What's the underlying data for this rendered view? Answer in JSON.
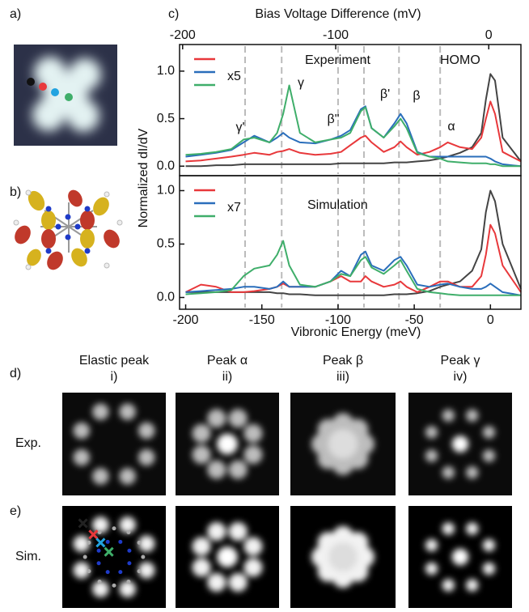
{
  "panel_labels": [
    "a)",
    "b)",
    "c)",
    "d)",
    "e)"
  ],
  "ylabel": "Normalized dI/dV",
  "chart_data": [
    {
      "type": "line",
      "x2label": "Bias Voltage Difference (mV)",
      "x2lim": [
        -202,
        21
      ],
      "x2ticks": [
        -200,
        -100,
        0
      ],
      "xlim": [
        -204,
        20
      ],
      "ylim": [
        -0.1,
        1.28
      ],
      "yticks": [
        {
          "value": 0,
          "label": "0.0"
        },
        {
          "value": 0.5,
          "label": "0.5"
        },
        {
          "value": 1,
          "label": "1.0"
        }
      ],
      "reference_lines": [
        -161,
        -137,
        -100,
        -83,
        -60,
        -33
      ],
      "legend_note": "x5",
      "annotations": [
        "Experiment",
        "HOMO",
        "γ'",
        "γ",
        "β\"",
        "β'",
        "β",
        "α"
      ],
      "x": [
        -200,
        -190,
        -180,
        -170,
        -162,
        -155,
        -145,
        -140,
        -136,
        -132,
        -125,
        -115,
        -105,
        -98,
        -92,
        -85,
        -82,
        -78,
        -70,
        -63,
        -59,
        -55,
        -48,
        -40,
        -33,
        -28,
        -20,
        -12,
        -6,
        -3,
        0,
        3,
        8,
        20
      ],
      "series": [
        {
          "color": "#444444",
          "legend": false,
          "values": [
            0.0,
            0.0,
            0.01,
            0.01,
            0.02,
            0.02,
            0.02,
            0.02,
            0.02,
            0.02,
            0.02,
            0.02,
            0.02,
            0.03,
            0.03,
            0.03,
            0.03,
            0.03,
            0.03,
            0.04,
            0.04,
            0.04,
            0.05,
            0.06,
            0.08,
            0.1,
            0.14,
            0.2,
            0.35,
            0.7,
            0.97,
            0.9,
            0.3,
            0.05
          ]
        },
        {
          "color": "#e8383b",
          "legend": true,
          "values": [
            0.05,
            0.06,
            0.08,
            0.1,
            0.12,
            0.14,
            0.12,
            0.15,
            0.16,
            0.18,
            0.14,
            0.12,
            0.13,
            0.15,
            0.22,
            0.3,
            0.32,
            0.25,
            0.15,
            0.2,
            0.26,
            0.2,
            0.12,
            0.15,
            0.2,
            0.25,
            0.2,
            0.18,
            0.3,
            0.5,
            0.68,
            0.55,
            0.15,
            0.05
          ]
        },
        {
          "color": "#2a6ebb",
          "legend": true,
          "values": [
            0.1,
            0.12,
            0.14,
            0.17,
            0.25,
            0.32,
            0.25,
            0.3,
            0.35,
            0.3,
            0.25,
            0.24,
            0.28,
            0.32,
            0.38,
            0.6,
            0.63,
            0.4,
            0.3,
            0.45,
            0.55,
            0.45,
            0.15,
            0.1,
            0.1,
            0.1,
            0.1,
            0.1,
            0.1,
            0.1,
            0.08,
            0.05,
            0.02,
            0.0
          ]
        },
        {
          "color": "#3fae6a",
          "legend": true,
          "values": [
            0.12,
            0.13,
            0.15,
            0.18,
            0.28,
            0.3,
            0.25,
            0.35,
            0.55,
            0.85,
            0.35,
            0.25,
            0.28,
            0.3,
            0.35,
            0.58,
            0.62,
            0.4,
            0.3,
            0.42,
            0.5,
            0.4,
            0.14,
            0.1,
            0.08,
            0.05,
            0.04,
            0.03,
            0.03,
            0.03,
            0.02,
            0.02,
            0.0,
            0.0
          ]
        }
      ]
    },
    {
      "type": "line",
      "xlabel": "Vibronic Energy (meV)",
      "xlim": [
        -204,
        20
      ],
      "xticks": [
        -200,
        -150,
        -100,
        -50,
        0
      ],
      "ylim": [
        -0.11,
        1.14
      ],
      "yticks": [
        {
          "value": 0,
          "label": "0.0"
        },
        {
          "value": 0.5,
          "label": "0.5"
        },
        {
          "value": 1,
          "label": "1.0"
        }
      ],
      "reference_lines": [
        -161,
        -137,
        -100,
        -83,
        -60,
        -33
      ],
      "legend_note": "x7",
      "annotations": [
        "Simulation"
      ],
      "x": [
        -200,
        -190,
        -180,
        -170,
        -162,
        -155,
        -145,
        -140,
        -136,
        -132,
        -125,
        -115,
        -105,
        -98,
        -92,
        -85,
        -82,
        -78,
        -70,
        -63,
        -59,
        -55,
        -48,
        -40,
        -33,
        -28,
        -20,
        -12,
        -6,
        -3,
        0,
        3,
        8,
        20
      ],
      "series": [
        {
          "color": "#444444",
          "legend": false,
          "values": [
            0.05,
            0.05,
            0.05,
            0.05,
            0.05,
            0.05,
            0.05,
            0.04,
            0.04,
            0.03,
            0.03,
            0.02,
            0.02,
            0.02,
            0.02,
            0.02,
            0.02,
            0.02,
            0.02,
            0.03,
            0.03,
            0.03,
            0.04,
            0.06,
            0.1,
            0.12,
            0.15,
            0.25,
            0.45,
            0.8,
            1.0,
            0.9,
            0.5,
            0.08
          ]
        },
        {
          "color": "#e8383b",
          "legend": true,
          "values": [
            0.05,
            0.12,
            0.1,
            0.05,
            0.05,
            0.06,
            0.08,
            0.1,
            0.13,
            0.1,
            0.1,
            0.1,
            0.15,
            0.2,
            0.15,
            0.15,
            0.2,
            0.15,
            0.1,
            0.12,
            0.15,
            0.1,
            0.05,
            0.1,
            0.15,
            0.15,
            0.1,
            0.1,
            0.2,
            0.4,
            0.68,
            0.6,
            0.3,
            0.05
          ]
        },
        {
          "color": "#2a6ebb",
          "legend": true,
          "values": [
            0.05,
            0.06,
            0.07,
            0.08,
            0.1,
            0.1,
            0.08,
            0.1,
            0.15,
            0.1,
            0.1,
            0.1,
            0.15,
            0.25,
            0.2,
            0.4,
            0.43,
            0.3,
            0.25,
            0.35,
            0.38,
            0.3,
            0.12,
            0.1,
            0.12,
            0.13,
            0.1,
            0.08,
            0.08,
            0.1,
            0.13,
            0.1,
            0.05,
            0.02
          ]
        },
        {
          "color": "#3fae6a",
          "legend": true,
          "values": [
            0.03,
            0.04,
            0.05,
            0.07,
            0.2,
            0.27,
            0.3,
            0.4,
            0.53,
            0.3,
            0.12,
            0.1,
            0.15,
            0.22,
            0.2,
            0.35,
            0.38,
            0.28,
            0.22,
            0.3,
            0.35,
            0.25,
            0.08,
            0.05,
            0.04,
            0.03,
            0.02,
            0.02,
            0.02,
            0.02,
            0.02,
            0.02,
            0.02,
            0.02
          ]
        }
      ]
    }
  ],
  "image_grid": {
    "columns": [
      [
        "Elastic peak",
        "i)"
      ],
      [
        "Peak α",
        "ii)"
      ],
      [
        "Peak β",
        "iii)"
      ],
      [
        "Peak γ",
        "iv)"
      ]
    ],
    "rows": [
      "Exp.",
      "Sim."
    ]
  }
}
